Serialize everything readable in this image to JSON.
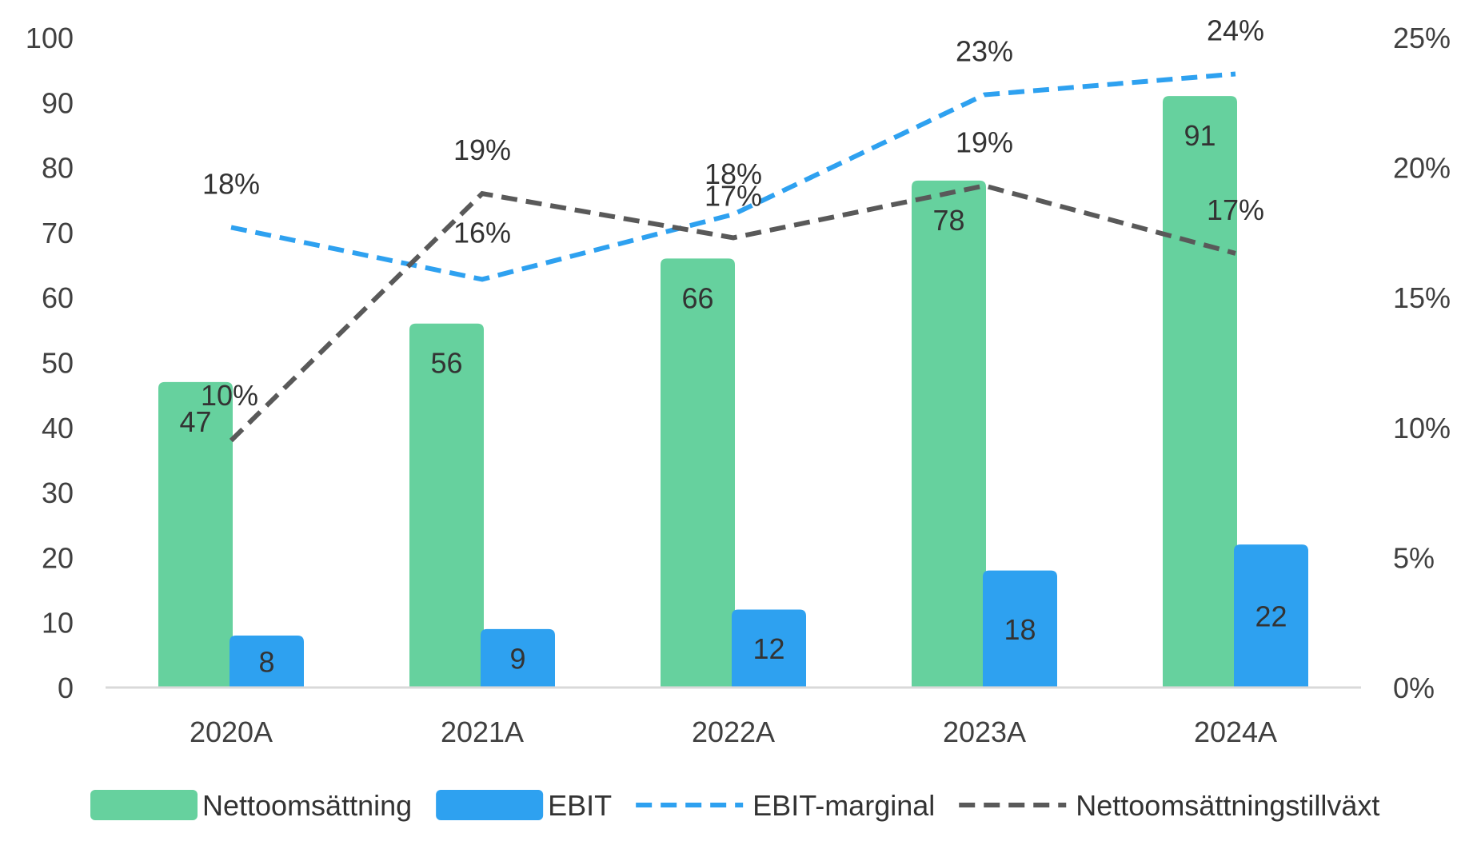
{
  "chart_data": {
    "type": "bar",
    "categories": [
      "2020A",
      "2021A",
      "2022A",
      "2023A",
      "2024A"
    ],
    "series": [
      {
        "name": "Nettoomsättning",
        "kind": "bar",
        "axis": "left",
        "values": [
          47,
          56,
          66,
          78,
          91
        ],
        "labels": [
          "47",
          "56",
          "66",
          "78",
          "91"
        ],
        "color": "#66d19e"
      },
      {
        "name": "EBIT",
        "kind": "bar",
        "axis": "left",
        "values": [
          8,
          9,
          12,
          18,
          22
        ],
        "labels": [
          "8",
          "9",
          "12",
          "18",
          "22"
        ],
        "color": "#2ea1f0"
      },
      {
        "name": "EBIT-marginal",
        "kind": "line",
        "style": "dashed",
        "axis": "right",
        "values": [
          0.177,
          0.157,
          0.182,
          0.228,
          0.236
        ],
        "labels": [
          "18%",
          "16%",
          "18%",
          "23%",
          "24%"
        ],
        "color": "#2ea1f0"
      },
      {
        "name": "Nettoomsättningstillväxt",
        "kind": "line",
        "style": "dashed",
        "axis": "right",
        "values": [
          0.095,
          0.19,
          0.173,
          0.193,
          0.167
        ],
        "labels": [
          "10%",
          "19%",
          "17%",
          "19%",
          "17%"
        ],
        "color": "#595959"
      }
    ],
    "y_left": {
      "min": 0,
      "max": 100,
      "ticks": [
        "0",
        "10",
        "20",
        "30",
        "40",
        "50",
        "60",
        "70",
        "80",
        "90",
        "100"
      ]
    },
    "y_right": {
      "min": 0,
      "max": 0.25,
      "ticks": [
        "0%",
        "5%",
        "10%",
        "15%",
        "20%",
        "25%"
      ]
    },
    "legend": {
      "position": "bottom",
      "entries": [
        "Nettoomsättning",
        "EBIT",
        "EBIT-marginal",
        "Nettoomsättningstillväxt"
      ]
    },
    "grid": false
  }
}
